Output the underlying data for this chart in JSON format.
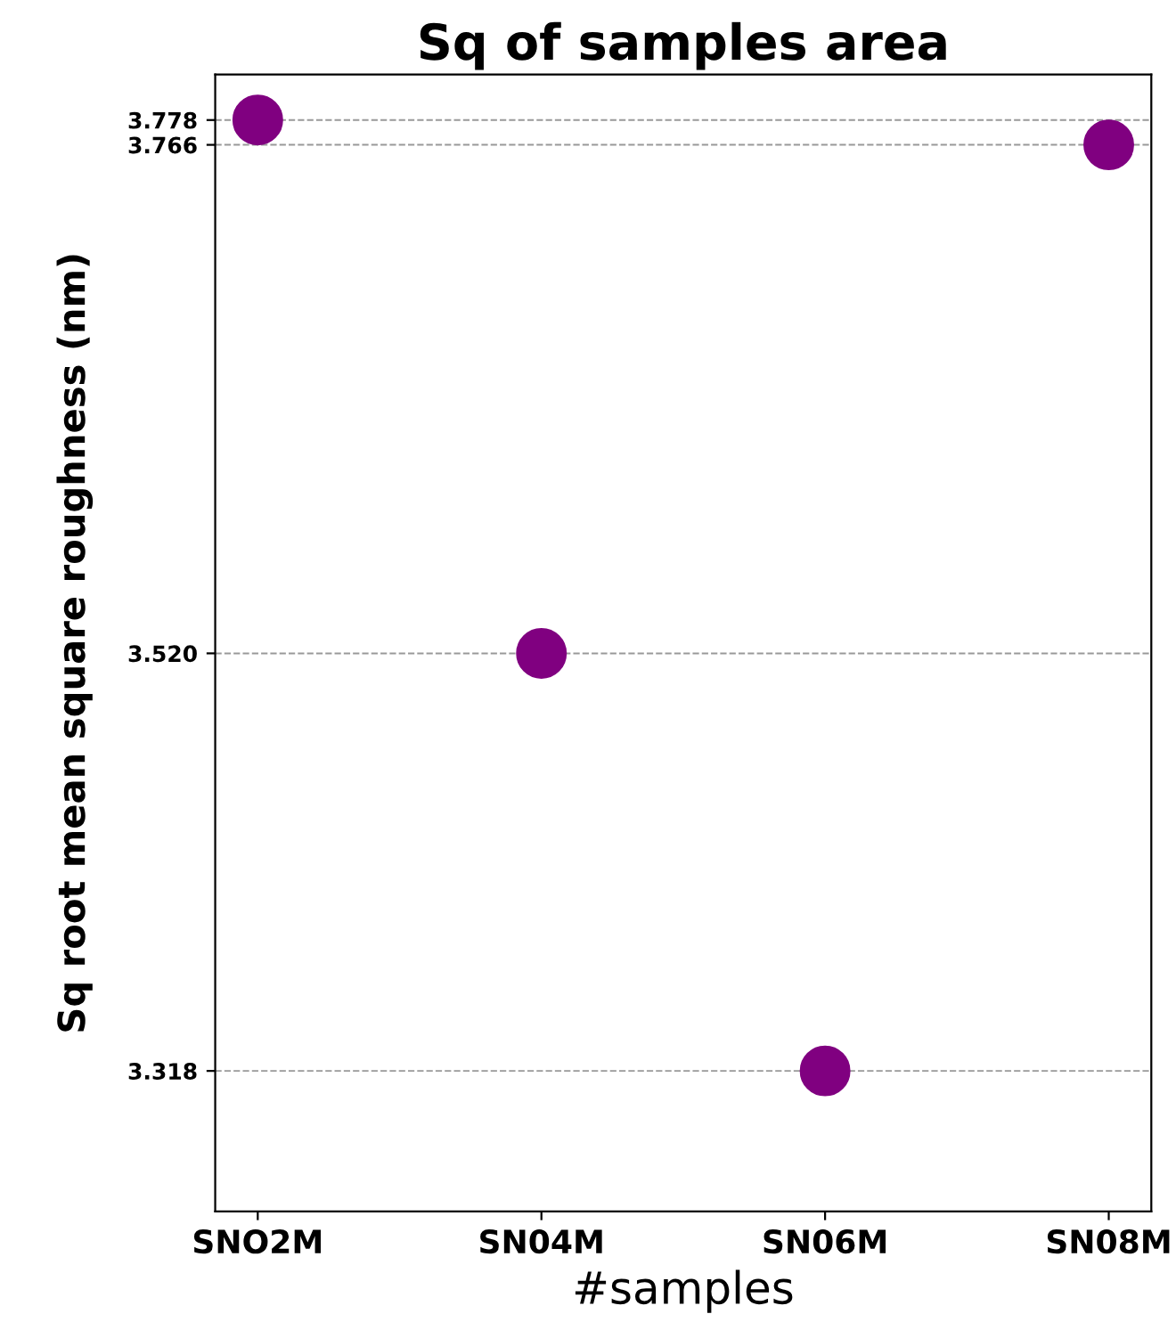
{
  "chart_data": {
    "type": "scatter",
    "title": "Sq of samples area",
    "xlabel": "#samples",
    "ylabel": "Sq root mean square roughness (nm)",
    "categories": [
      "SNO2M",
      "SN04M",
      "SN06M",
      "SN08M"
    ],
    "series": [
      {
        "color": "#800080",
        "values": [
          3.778,
          3.52,
          3.318,
          3.766
        ]
      }
    ],
    "ylim": [
      3.25,
      3.8
    ],
    "yticks": [
      {
        "value": 3.318,
        "label": "3.318"
      },
      {
        "value": 3.52,
        "label": "3.520"
      },
      {
        "value": 3.766,
        "label": "3.766"
      },
      {
        "value": 3.778,
        "label": "3.778"
      }
    ],
    "grid": "y"
  }
}
